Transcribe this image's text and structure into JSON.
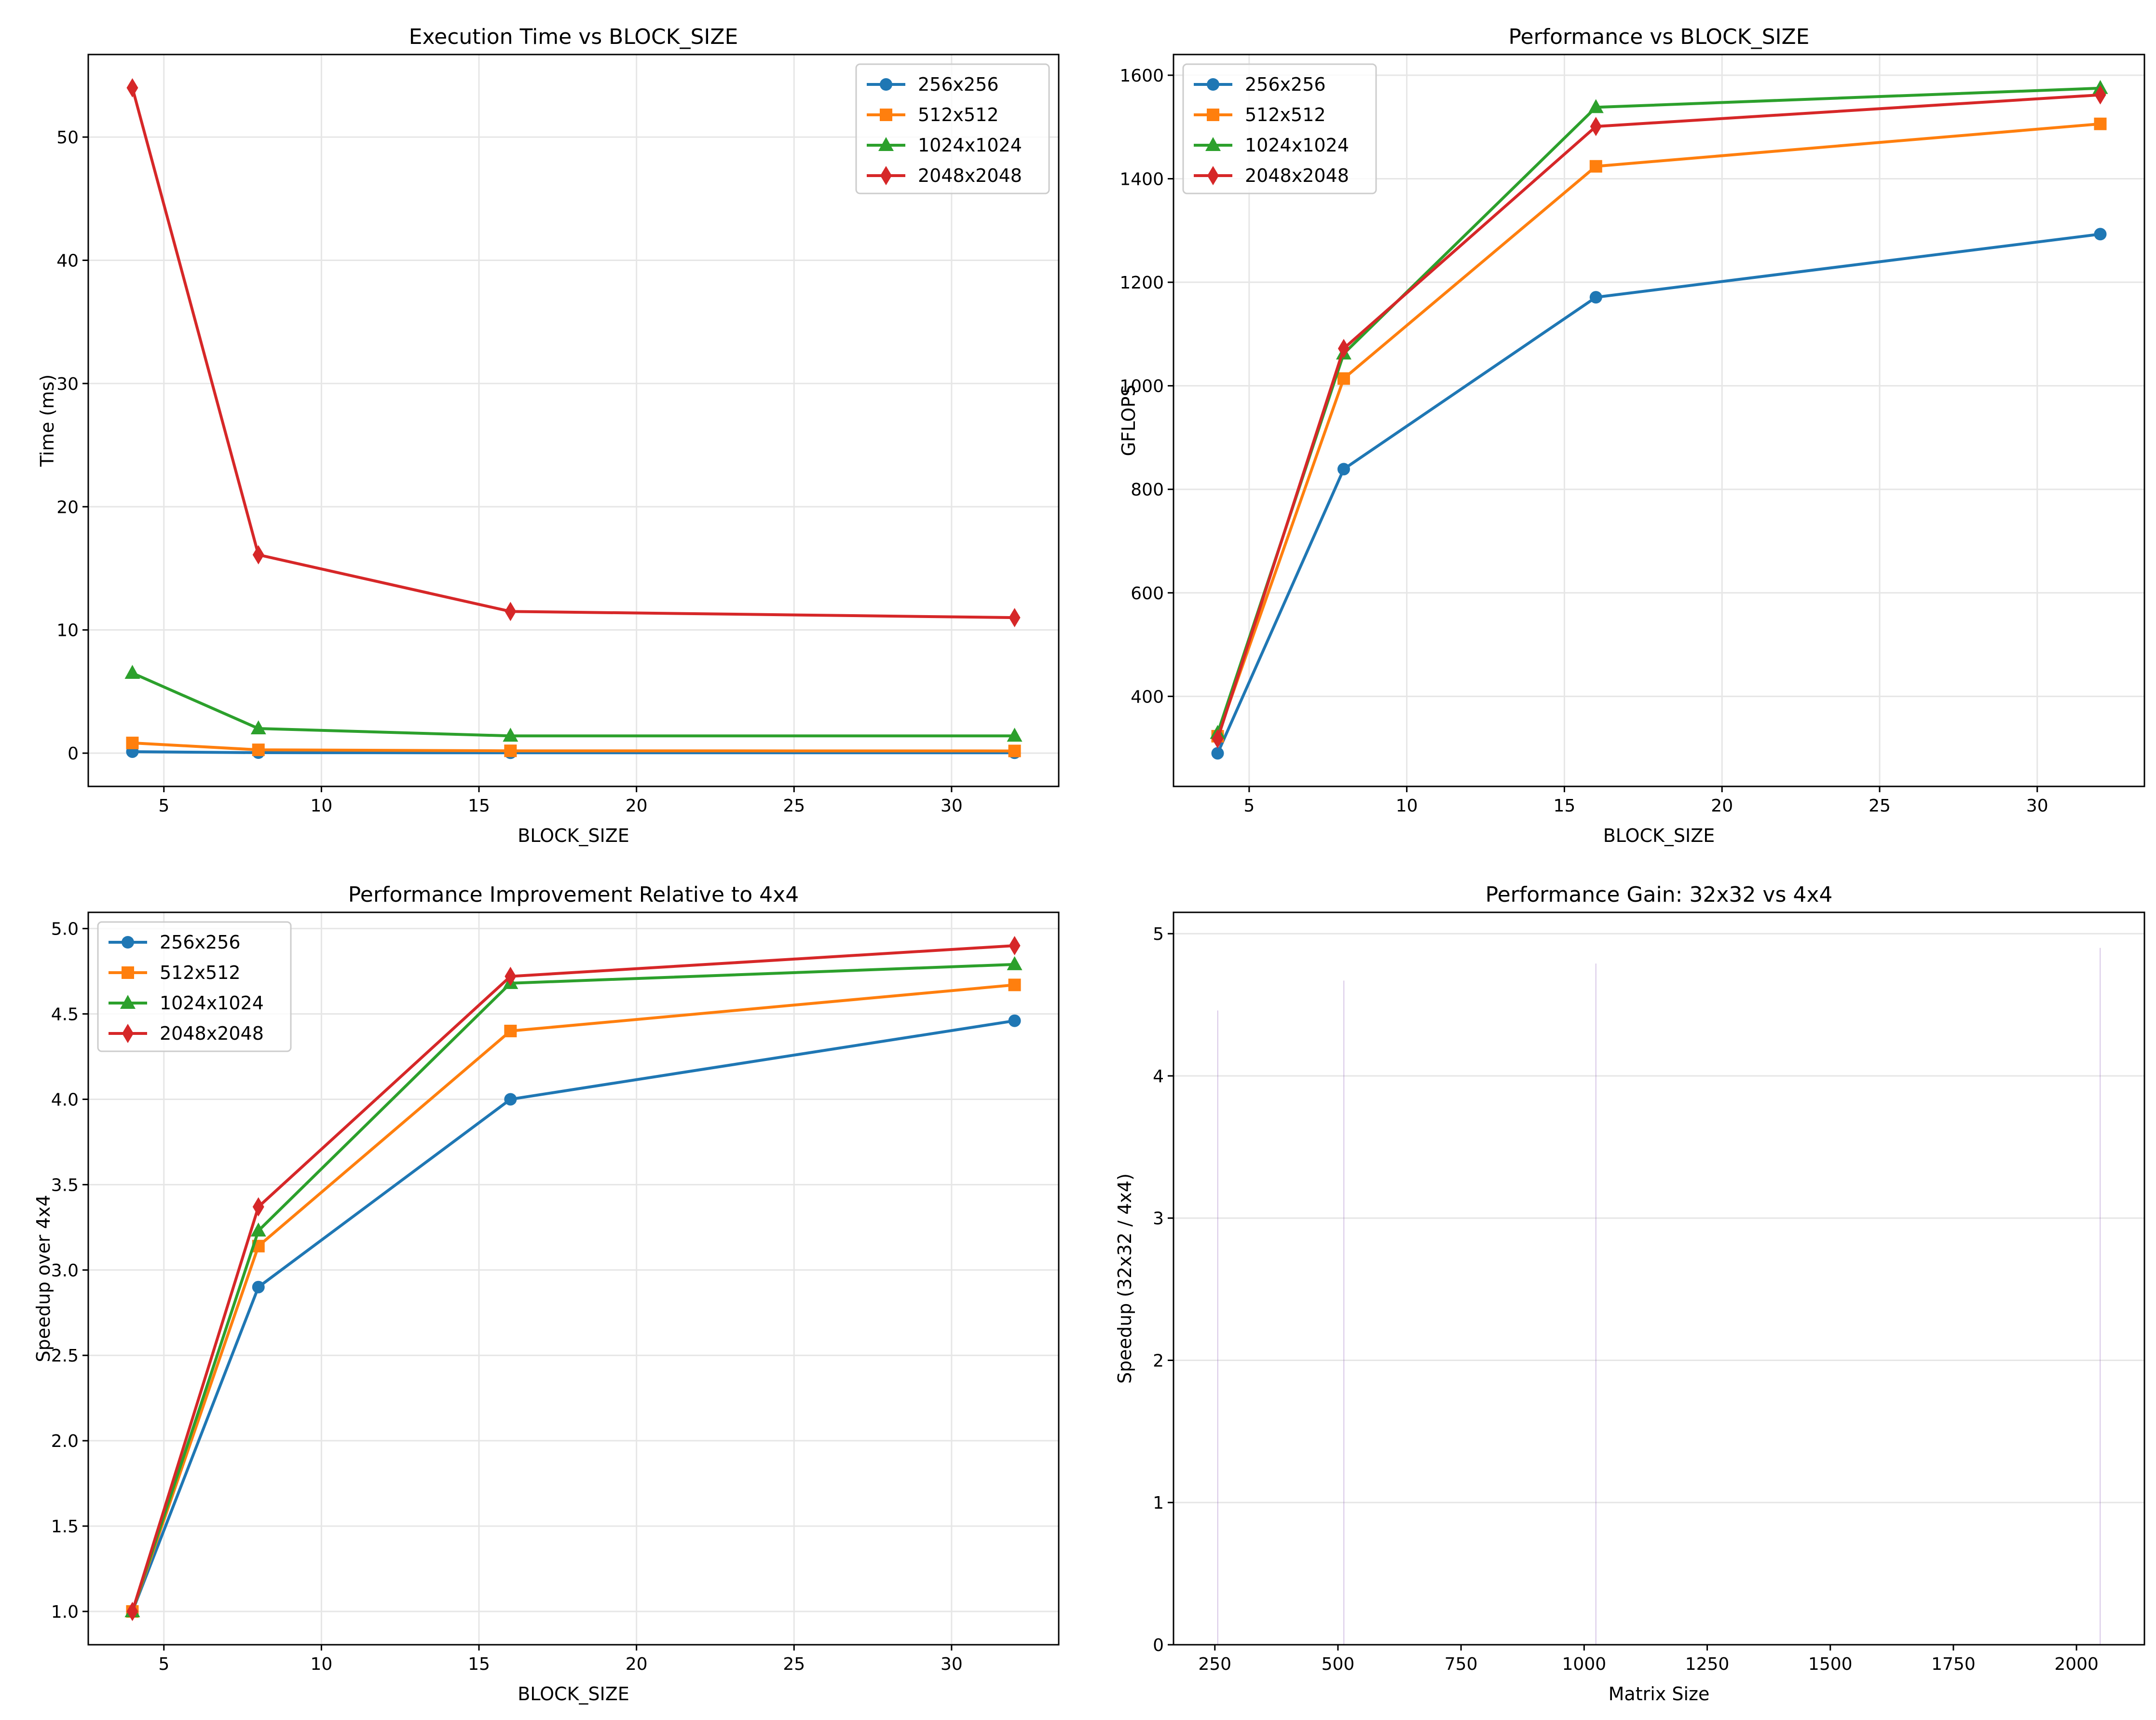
{
  "figure": {
    "series_colors": {
      "256x256": "#1f77b4",
      "512x512": "#ff7f0e",
      "1024x1024": "#2ca02c",
      "2048x2048": "#d62728"
    },
    "bar_color": "#9467bd"
  },
  "chart_data": [
    {
      "id": "time",
      "type": "line",
      "title": "Execution Time vs BLOCK_SIZE",
      "xlabel": "BLOCK_SIZE",
      "ylabel": "Time (ms)",
      "xlim": [
        2.6,
        33.4
      ],
      "ylim": [
        -2.7,
        56.7
      ],
      "xticks": [
        5,
        10,
        15,
        20,
        25,
        30
      ],
      "yticks": [
        0,
        10,
        20,
        30,
        40,
        50
      ],
      "grid": true,
      "legend": "top-right",
      "x": [
        4,
        8,
        16,
        32
      ],
      "series": [
        {
          "name": "256x256",
          "marker": "circle",
          "values": [
            0.12,
            0.04,
            0.03,
            0.03
          ]
        },
        {
          "name": "512x512",
          "marker": "square",
          "values": [
            0.83,
            0.27,
            0.19,
            0.18
          ]
        },
        {
          "name": "1024x1024",
          "marker": "triangle",
          "values": [
            6.5,
            2.0,
            1.4,
            1.4
          ]
        },
        {
          "name": "2048x2048",
          "marker": "diamond",
          "values": [
            54.0,
            16.1,
            11.5,
            11.0
          ]
        }
      ]
    },
    {
      "id": "gflops",
      "type": "line",
      "title": "Performance vs BLOCK_SIZE",
      "xlabel": "BLOCK_SIZE",
      "ylabel": "GFLOPS",
      "xlim": [
        2.6,
        33.4
      ],
      "ylim": [
        226,
        1640
      ],
      "xticks": [
        5,
        10,
        15,
        20,
        25,
        30
      ],
      "yticks": [
        400,
        600,
        800,
        1000,
        1200,
        1400,
        1600
      ],
      "grid": true,
      "legend": "top-left",
      "x": [
        4,
        8,
        16,
        32
      ],
      "series": [
        {
          "name": "256x256",
          "marker": "circle",
          "values": [
            290,
            839,
            1171,
            1293
          ]
        },
        {
          "name": "512x512",
          "marker": "square",
          "values": [
            323,
            1014,
            1424,
            1506
          ]
        },
        {
          "name": "1024x1024",
          "marker": "triangle",
          "values": [
            329,
            1062,
            1538,
            1575
          ]
        },
        {
          "name": "2048x2048",
          "marker": "diamond",
          "values": [
            318,
            1072,
            1501,
            1562
          ]
        }
      ]
    },
    {
      "id": "speedup",
      "type": "line",
      "title": "Performance Improvement Relative to 4x4",
      "xlabel": "BLOCK_SIZE",
      "ylabel": "Speedup over 4x4",
      "xlim": [
        2.6,
        33.4
      ],
      "ylim": [
        0.805,
        5.095
      ],
      "xticks": [
        5,
        10,
        15,
        20,
        25,
        30
      ],
      "yticks": [
        1.0,
        1.5,
        2.0,
        2.5,
        3.0,
        3.5,
        4.0,
        4.5,
        5.0
      ],
      "ytick_labels": [
        "1.0",
        "1.5",
        "2.0",
        "2.5",
        "3.0",
        "3.5",
        "4.0",
        "4.5",
        "5.0"
      ],
      "grid": true,
      "legend": "top-left",
      "x": [
        4,
        8,
        16,
        32
      ],
      "series": [
        {
          "name": "256x256",
          "marker": "circle",
          "values": [
            1.0,
            2.9,
            4.0,
            4.46
          ]
        },
        {
          "name": "512x512",
          "marker": "square",
          "values": [
            1.0,
            3.14,
            4.4,
            4.67
          ]
        },
        {
          "name": "1024x1024",
          "marker": "triangle",
          "values": [
            1.0,
            3.23,
            4.68,
            4.79
          ]
        },
        {
          "name": "2048x2048",
          "marker": "diamond",
          "values": [
            1.0,
            3.37,
            4.72,
            4.9
          ]
        }
      ]
    },
    {
      "id": "gain",
      "type": "bar",
      "title": "Performance Gain: 32x32 vs 4x4",
      "xlabel": "Matrix Size",
      "ylabel": "Speedup (32x32 / 4x4)",
      "xlim": [
        166,
        2138
      ],
      "ylim": [
        0,
        5.15
      ],
      "xticks": [
        250,
        500,
        750,
        1000,
        1250,
        1500,
        1750,
        2000
      ],
      "yticks": [
        0,
        1,
        2,
        3,
        4,
        5
      ],
      "grid": true,
      "grid_axis": "y",
      "categories": [
        256,
        512,
        1024,
        2048
      ],
      "values": [
        4.46,
        4.67,
        4.79,
        4.9
      ],
      "bar_width_units": 0.8
    }
  ]
}
